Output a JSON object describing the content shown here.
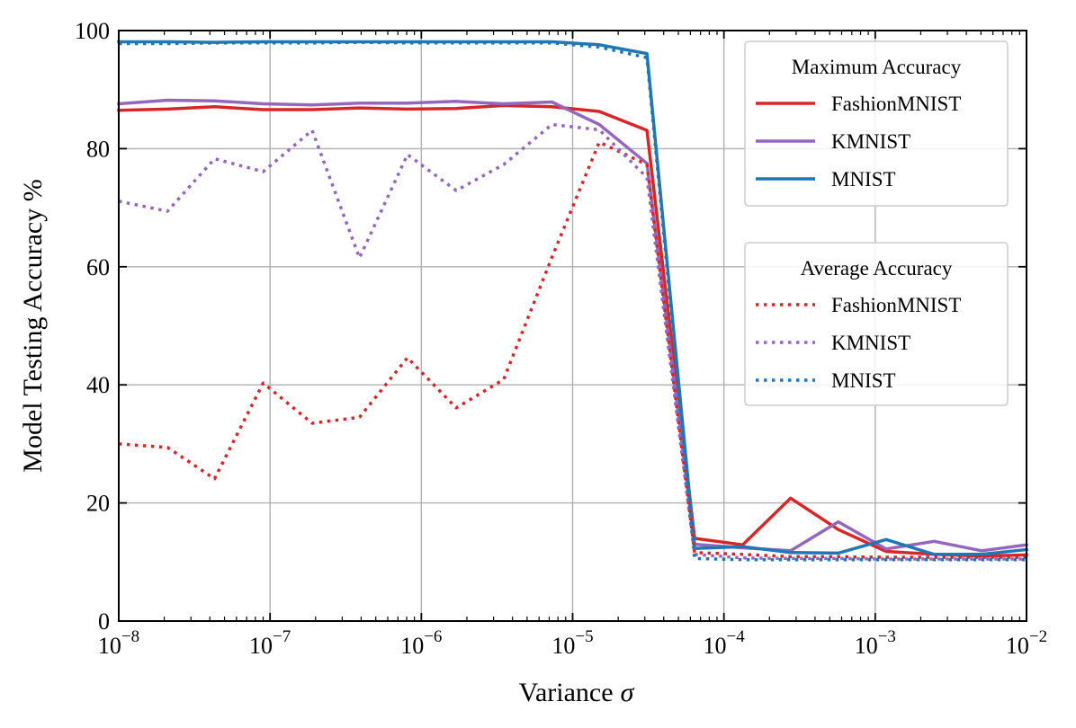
{
  "chart_data": {
    "type": "line",
    "xscale": "log",
    "xlabel": "Variance",
    "xlabel_symbol": "σ",
    "ylabel": "Model Testing Accuracy %",
    "xlim": [
      1e-08,
      0.01
    ],
    "ylim": [
      0,
      100
    ],
    "grid": true,
    "x_ticks": [
      {
        "value": 1e-08,
        "base": "10",
        "exp": "−8"
      },
      {
        "value": 1e-07,
        "base": "10",
        "exp": "−7"
      },
      {
        "value": 1e-06,
        "base": "10",
        "exp": "−6"
      },
      {
        "value": 1e-05,
        "base": "10",
        "exp": "−5"
      },
      {
        "value": 0.0001,
        "base": "10",
        "exp": "−4"
      },
      {
        "value": 0.001,
        "base": "10",
        "exp": "−3"
      },
      {
        "value": 0.01,
        "base": "10",
        "exp": "−2"
      }
    ],
    "y_ticks": [
      "0",
      "20",
      "40",
      "60",
      "80",
      "100"
    ],
    "x": [
      1e-08,
      2.1e-08,
      4.3e-08,
      9e-08,
      1.9e-07,
      3.9e-07,
      8.1e-07,
      1.7e-06,
      3.5e-06,
      7.3e-06,
      1.5e-05,
      3.1e-05,
      6.4e-05,
      0.000133,
      0.000276,
      0.00057,
      0.00118,
      0.00245,
      0.00506,
      0.01
    ],
    "legends": [
      {
        "title": "Maximum Accuracy",
        "position": "upper-right",
        "style": "solid",
        "entries": [
          "FashionMNIST",
          "KMNIST",
          "MNIST"
        ]
      },
      {
        "title": "Average Accuracy",
        "position": "center-right",
        "style": "dotted",
        "entries": [
          "FashionMNIST",
          "KMNIST",
          "MNIST"
        ]
      }
    ],
    "series": [
      {
        "name": "FashionMNIST",
        "group": "Maximum Accuracy",
        "style": "solid",
        "color": "#d62728",
        "values": [
          86.5,
          86.7,
          87.1,
          86.6,
          86.6,
          86.9,
          86.7,
          86.8,
          87.3,
          87.1,
          86.3,
          83.1,
          14.0,
          12.9,
          20.8,
          15.5,
          11.8,
          11.3,
          11.0,
          11.2
        ]
      },
      {
        "name": "KMNIST",
        "group": "Maximum Accuracy",
        "style": "solid",
        "color": "#9467bd",
        "values": [
          87.6,
          88.2,
          88.1,
          87.6,
          87.4,
          87.7,
          87.7,
          88.0,
          87.6,
          87.9,
          84.1,
          77.5,
          13.0,
          12.4,
          11.9,
          16.8,
          12.2,
          13.5,
          11.9,
          12.9
        ]
      },
      {
        "name": "MNIST",
        "group": "Maximum Accuracy",
        "style": "solid",
        "color": "#1f77b4",
        "values": [
          98.1,
          98.1,
          98.0,
          98.1,
          98.1,
          98.1,
          98.1,
          98.1,
          98.1,
          98.1,
          97.6,
          96.1,
          12.3,
          12.6,
          11.6,
          11.5,
          13.8,
          11.3,
          11.3,
          12.1
        ]
      },
      {
        "name": "FashionMNIST",
        "group": "Average Accuracy",
        "style": "dotted",
        "color": "#d62728",
        "values": [
          30.0,
          29.4,
          24.1,
          40.3,
          33.5,
          34.5,
          44.6,
          36.1,
          40.9,
          61.6,
          81.1,
          77.3,
          11.6,
          11.3,
          10.9,
          10.9,
          10.8,
          10.8,
          10.8,
          10.8
        ]
      },
      {
        "name": "KMNIST",
        "group": "Average Accuracy",
        "style": "dotted",
        "color": "#9467bd",
        "values": [
          71.1,
          69.4,
          78.3,
          76.1,
          83.1,
          61.5,
          79.0,
          72.9,
          77.3,
          84.1,
          83.2,
          75.1,
          11.3,
          10.7,
          10.6,
          10.6,
          10.5,
          10.5,
          10.5,
          10.5
        ]
      },
      {
        "name": "MNIST",
        "group": "Average Accuracy",
        "style": "dotted",
        "color": "#1f77b4",
        "values": [
          97.8,
          97.8,
          97.9,
          97.9,
          97.9,
          98.0,
          97.9,
          97.9,
          97.9,
          97.9,
          97.2,
          95.4,
          10.6,
          10.4,
          10.4,
          10.4,
          10.4,
          10.4,
          10.4,
          10.4
        ]
      }
    ]
  }
}
